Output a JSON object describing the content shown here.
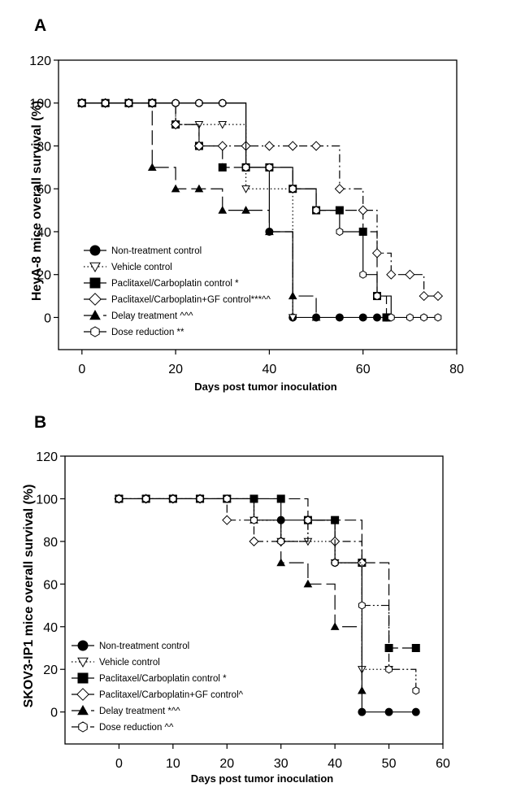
{
  "chart_data": [
    {
      "type": "line",
      "subtype": "kaplan-meier step",
      "panel_label": "A",
      "title": "",
      "xlabel": "Days post tumor inoculation",
      "ylabel": "HeyA-8 mice overall survival (%)",
      "xlim": [
        -5,
        80
      ],
      "ylim": [
        -15,
        120
      ],
      "xticks": [
        0,
        20,
        40,
        60,
        80
      ],
      "yticks": [
        0,
        20,
        40,
        60,
        80,
        100,
        120
      ],
      "grid": false,
      "legend_position": "bottom-left",
      "series": [
        {
          "name": "Non-treatment control",
          "marker": "filled-circle",
          "dash": "solid",
          "x": [
            0,
            5,
            10,
            15,
            20,
            25,
            30,
            35,
            40,
            45,
            50,
            55,
            60,
            63,
            65
          ],
          "y": [
            100,
            100,
            100,
            100,
            100,
            100,
            100,
            70,
            40,
            0,
            0,
            0,
            0,
            0,
            0
          ]
        },
        {
          "name": "Vehicle control",
          "marker": "open-triangle-down",
          "dash": "dotted",
          "x": [
            0,
            5,
            10,
            15,
            20,
            25,
            30,
            35,
            45
          ],
          "y": [
            100,
            100,
            100,
            100,
            90,
            90,
            90,
            60,
            0
          ]
        },
        {
          "name": "Paclitaxel/Carboplatin control *",
          "marker": "filled-square",
          "dash": "dashed",
          "x": [
            0,
            5,
            10,
            15,
            20,
            25,
            30,
            35,
            40,
            45,
            50,
            55,
            60,
            63,
            65
          ],
          "y": [
            100,
            100,
            100,
            100,
            90,
            80,
            70,
            70,
            70,
            60,
            50,
            50,
            40,
            10,
            0
          ]
        },
        {
          "name": "Paclitaxel/Carboplatin+GF control***^^",
          "marker": "open-diamond",
          "dash": "dash-dot",
          "x": [
            0,
            5,
            10,
            15,
            20,
            25,
            30,
            35,
            40,
            45,
            50,
            55,
            60,
            63,
            66,
            70,
            73,
            76
          ],
          "y": [
            100,
            100,
            100,
            100,
            90,
            80,
            80,
            80,
            80,
            80,
            80,
            60,
            50,
            30,
            20,
            20,
            10,
            10
          ]
        },
        {
          "name": "Delay treatment ^^^",
          "marker": "filled-triangle-up",
          "dash": "long-dash",
          "x": [
            0,
            5,
            10,
            15,
            20,
            25,
            30,
            35,
            40,
            45,
            50
          ],
          "y": [
            100,
            100,
            100,
            70,
            60,
            60,
            50,
            50,
            40,
            10,
            0
          ]
        },
        {
          "name": "Dose reduction **",
          "marker": "open-hexagon",
          "dash": "solid",
          "x": [
            0,
            5,
            10,
            15,
            20,
            25,
            30,
            35,
            40,
            45,
            50,
            55,
            60,
            63,
            66,
            70,
            73,
            76
          ],
          "y": [
            100,
            100,
            100,
            100,
            100,
            100,
            100,
            70,
            70,
            60,
            50,
            40,
            20,
            10,
            0,
            0,
            0,
            0
          ]
        }
      ]
    },
    {
      "type": "line",
      "subtype": "kaplan-meier step",
      "panel_label": "B",
      "title": "",
      "xlabel": "Days post tumor inoculation",
      "ylabel": "SKOV3-IP1 mice overall survival (%)",
      "xlim": [
        -10,
        60
      ],
      "ylim": [
        -15,
        120
      ],
      "xticks": [
        0,
        10,
        20,
        30,
        40,
        50,
        60
      ],
      "yticks": [
        0,
        20,
        40,
        60,
        80,
        100,
        120
      ],
      "grid": false,
      "legend_position": "bottom-left",
      "series": [
        {
          "name": "Non-treatment control",
          "marker": "filled-circle",
          "dash": "solid",
          "x": [
            0,
            5,
            10,
            15,
            20,
            25,
            30,
            35,
            40,
            45,
            50,
            55
          ],
          "y": [
            100,
            100,
            100,
            100,
            100,
            100,
            90,
            90,
            70,
            0,
            0,
            0
          ]
        },
        {
          "name": "Vehicle control",
          "marker": "open-triangle-down",
          "dash": "dotted",
          "x": [
            0,
            5,
            10,
            15,
            20,
            25,
            30,
            35,
            40,
            45,
            50
          ],
          "y": [
            100,
            100,
            100,
            100,
            100,
            90,
            80,
            80,
            70,
            20,
            20
          ]
        },
        {
          "name": "Paclitaxel/Carboplatin control *",
          "marker": "filled-square",
          "dash": "dashed",
          "x": [
            0,
            5,
            10,
            15,
            20,
            25,
            30,
            35,
            40,
            45,
            50,
            55
          ],
          "y": [
            100,
            100,
            100,
            100,
            100,
            100,
            100,
            90,
            90,
            70,
            30,
            30
          ]
        },
        {
          "name": "Paclitaxel/Carboplatin+GF control^",
          "marker": "open-diamond",
          "dash": "dash-dot",
          "x": [
            0,
            5,
            10,
            15,
            20,
            25,
            30,
            35,
            40,
            45
          ],
          "y": [
            100,
            100,
            100,
            100,
            90,
            80,
            80,
            90,
            80,
            70
          ]
        },
        {
          "name": "Delay treatment *^^",
          "marker": "filled-triangle-up",
          "dash": "long-dash",
          "x": [
            0,
            5,
            10,
            15,
            20,
            25,
            30,
            35,
            40,
            45
          ],
          "y": [
            100,
            100,
            100,
            100,
            100,
            90,
            70,
            60,
            40,
            10
          ]
        },
        {
          "name": "Dose reduction ^^",
          "marker": "open-hexagon",
          "dash": "dash-dot-dot",
          "x": [
            0,
            5,
            10,
            15,
            20,
            25,
            30,
            35,
            40,
            45,
            50,
            55
          ],
          "y": [
            100,
            100,
            100,
            100,
            100,
            90,
            80,
            90,
            70,
            50,
            20,
            10
          ]
        }
      ]
    }
  ]
}
